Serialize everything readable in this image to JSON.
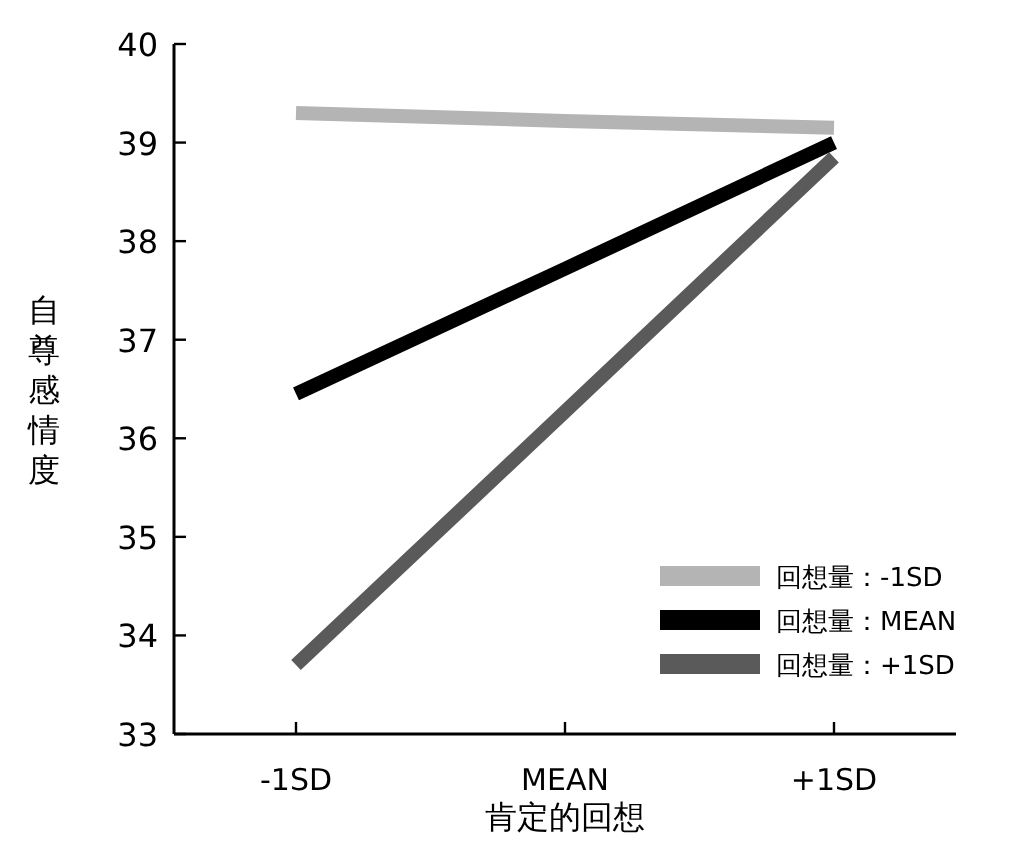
{
  "chart_data": {
    "type": "line",
    "xlabel": "肯定的回想",
    "ylabel": "自尊感情度",
    "categories": [
      "-1SD",
      "MEAN",
      "+1SD"
    ],
    "series": [
      {
        "name": "回想量：-1SD",
        "color": "#b4b4b4",
        "values": [
          39.3,
          39.22,
          39.15
        ]
      },
      {
        "name": "回想量：MEAN",
        "color": "#000000",
        "values": [
          36.45,
          37.72,
          39.0
        ]
      },
      {
        "name": "回想量：+1SD",
        "color": "#5a5a5a",
        "values": [
          33.7,
          36.27,
          38.85
        ]
      }
    ],
    "ylim": [
      33,
      40
    ],
    "yticks": [
      33,
      34,
      35,
      36,
      37,
      38,
      39,
      40
    ],
    "legend": "bottom right"
  }
}
